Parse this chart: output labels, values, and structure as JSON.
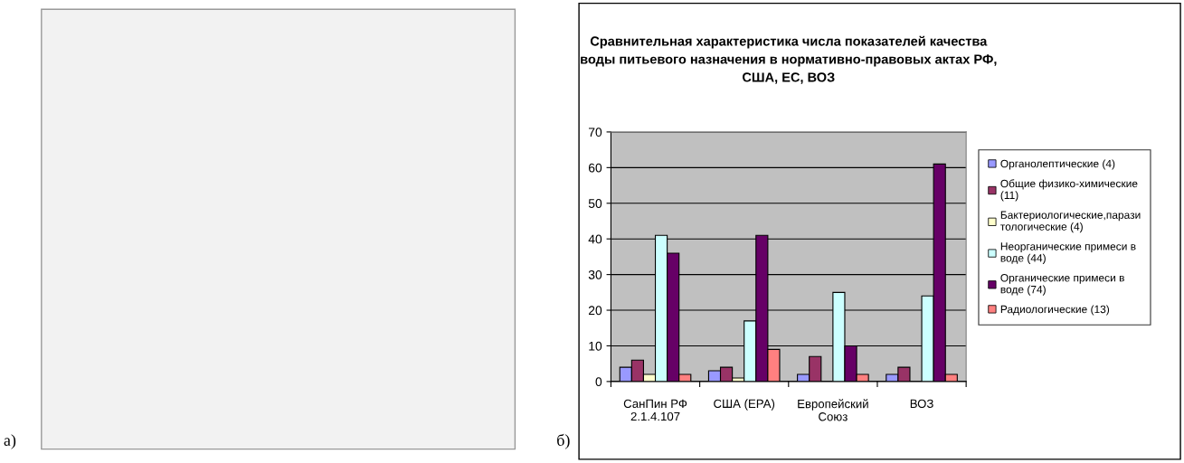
{
  "chart_data": {
    "type": "bar",
    "title": "Сравнительная характеристика числа показателей качества\nводы питьевого назначения в нормативно-правовых актах РФ,\nСША, ЕС, ВОЗ",
    "categories": [
      "СанПин РФ\n2.1.4.107",
      "США (ЕРА)",
      "Европейский\nСоюз",
      "ВОЗ"
    ],
    "series": [
      {
        "name": "Органолептические (4)",
        "color": "#9999ff",
        "values": [
          4,
          3,
          2,
          2
        ]
      },
      {
        "name": "Общие физико-химические\n(11)",
        "color": "#993366",
        "values": [
          6,
          4,
          7,
          4
        ]
      },
      {
        "name": "Бактериологические,парази\nтологические (4)",
        "color": "#ffffcc",
        "values": [
          2,
          1,
          null,
          null
        ]
      },
      {
        "name": "Неорганические примеси в\nводе (44)",
        "color": "#ccffff",
        "values": [
          41,
          17,
          25,
          24
        ]
      },
      {
        "name": "Органические примеси в\nводе (74)",
        "color": "#660066",
        "values": [
          36,
          41,
          10,
          61
        ]
      },
      {
        "name": "Радиологические (13)",
        "color": "#ff8080",
        "values": [
          2,
          9,
          2,
          2
        ]
      }
    ],
    "ylim": [
      0,
      70
    ],
    "yticks": [
      0,
      10,
      20,
      30,
      40,
      50,
      60,
      70
    ],
    "grid": "y",
    "legend": "right",
    "annotations": [
      "а)",
      "б)"
    ]
  }
}
